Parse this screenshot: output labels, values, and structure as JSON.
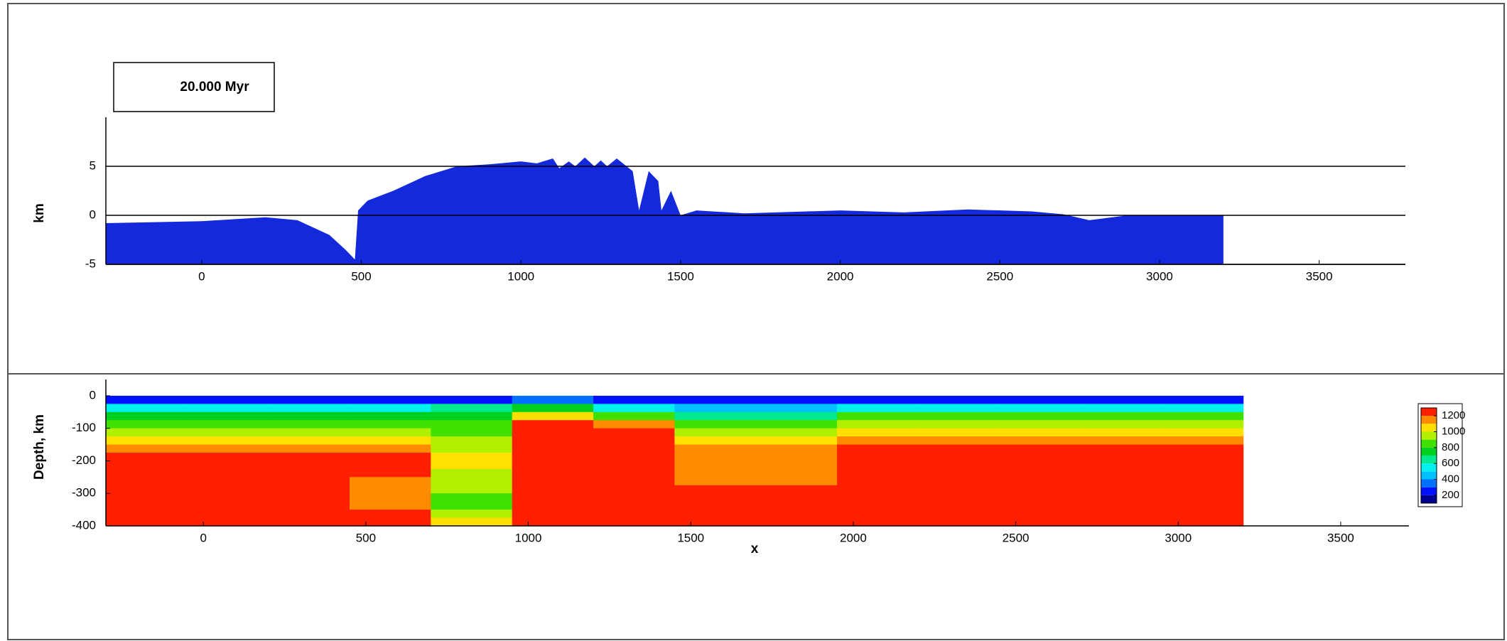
{
  "chart_data": [
    {
      "type": "area",
      "label": "20.000 Myr",
      "y_label": "km",
      "color": "#1428dc",
      "x": [
        -300,
        0,
        200,
        300,
        400,
        450,
        480,
        490,
        520,
        600,
        700,
        800,
        900,
        1000,
        1050,
        1100,
        1120,
        1150,
        1170,
        1200,
        1230,
        1250,
        1270,
        1300,
        1350,
        1370,
        1400,
        1430,
        1440,
        1470,
        1500,
        1550,
        1700,
        2000,
        2200,
        2400,
        2600,
        2700,
        2780,
        2900,
        3200
      ],
      "values": [
        -0.8,
        -0.6,
        -0.2,
        -0.5,
        -2,
        -3.5,
        -4.5,
        0.5,
        1.5,
        2.5,
        4,
        5,
        5.2,
        5.5,
        5.3,
        5.8,
        4.8,
        5.5,
        5,
        5.9,
        5,
        5.6,
        5,
        5.8,
        4.5,
        0.5,
        4.5,
        3.5,
        0.5,
        2.5,
        0,
        0.5,
        0.2,
        0.5,
        0.3,
        0.6,
        0.4,
        0.1,
        -0.5,
        0,
        0
      ],
      "xlim": [
        -300,
        3770
      ],
      "ylim": [
        -5,
        10
      ],
      "xticks": [
        0,
        500,
        1000,
        1500,
        2000,
        2500,
        3000,
        3500
      ],
      "yticks": [
        -5,
        0,
        5
      ],
      "grid": true
    },
    {
      "type": "heatmap",
      "y_label": "Depth, km",
      "x_label": "x",
      "x_edges": [
        -300,
        -50,
        200,
        450,
        700,
        950,
        1200,
        1450,
        1700,
        1950,
        2200,
        2450,
        2700,
        2950,
        3200
      ],
      "y_edges": [
        0,
        -25,
        -50,
        -75,
        -100,
        -125,
        -150,
        -175,
        -200,
        -225,
        -250,
        -275,
        -300,
        -325,
        -350,
        -375,
        -400
      ],
      "z": [
        [
          250,
          250,
          250,
          250,
          250,
          350,
          250,
          250,
          250,
          250,
          250,
          250,
          250,
          250
        ],
        [
          550,
          550,
          550,
          550,
          600,
          750,
          550,
          450,
          450,
          550,
          550,
          550,
          550,
          550
        ],
        [
          750,
          750,
          750,
          750,
          750,
          1050,
          850,
          650,
          650,
          800,
          800,
          800,
          800,
          800
        ],
        [
          850,
          850,
          850,
          850,
          800,
          1250,
          1150,
          800,
          800,
          900,
          900,
          900,
          900,
          900
        ],
        [
          950,
          950,
          950,
          900,
          850,
          1250,
          1250,
          900,
          900,
          1000,
          1000,
          1000,
          1000,
          1000
        ],
        [
          1050,
          1050,
          1050,
          1000,
          900,
          1250,
          1250,
          1050,
          1000,
          1100,
          1100,
          1100,
          1100,
          1100
        ],
        [
          1150,
          1150,
          1150,
          1100,
          950,
          1250,
          1250,
          1150,
          1100,
          1200,
          1200,
          1200,
          1200,
          1200
        ],
        [
          1250,
          1250,
          1250,
          1200,
          1000,
          1250,
          1250,
          1150,
          1150,
          1250,
          1250,
          1250,
          1250,
          1250
        ],
        [
          1250,
          1250,
          1250,
          1250,
          1000,
          1250,
          1250,
          1150,
          1150,
          1250,
          1250,
          1250,
          1250,
          1250
        ],
        [
          1250,
          1250,
          1250,
          1250,
          950,
          1250,
          1250,
          1150,
          1150,
          1250,
          1250,
          1250,
          1250,
          1250
        ],
        [
          1250,
          1250,
          1250,
          1150,
          950,
          1250,
          1250,
          1150,
          1150,
          1250,
          1250,
          1250,
          1250,
          1250
        ],
        [
          1250,
          1250,
          1250,
          1150,
          900,
          1250,
          1250,
          1200,
          1200,
          1250,
          1250,
          1250,
          1250,
          1250
        ],
        [
          1250,
          1250,
          1250,
          1100,
          850,
          1250,
          1250,
          1250,
          1250,
          1250,
          1250,
          1250,
          1250,
          1250
        ],
        [
          1250,
          1250,
          1250,
          1150,
          850,
          1250,
          1250,
          1250,
          1250,
          1250,
          1250,
          1250,
          1250,
          1250
        ],
        [
          1250,
          1250,
          1250,
          1200,
          900,
          1250,
          1250,
          1250,
          1250,
          1250,
          1250,
          1250,
          1250,
          1250
        ],
        [
          1250,
          1250,
          1250,
          1250,
          1000,
          1250,
          1250,
          1250,
          1250,
          1250,
          1250,
          1250,
          1250,
          1250
        ]
      ],
      "xlim": [
        -300,
        3710
      ],
      "ylim": [
        -400,
        50
      ],
      "xticks": [
        0,
        500,
        1000,
        1500,
        2000,
        2500,
        3000,
        3500
      ],
      "yticks": [
        0,
        -100,
        -200,
        -300,
        -400
      ],
      "colorbar": {
        "levels": [
          100,
          200,
          300,
          400,
          500,
          600,
          700,
          800,
          900,
          1000,
          1100,
          1200,
          1300
        ],
        "colors": [
          "#000090",
          "#0010ff",
          "#0070ff",
          "#00c0ff",
          "#00f0f0",
          "#00e890",
          "#00d020",
          "#40e000",
          "#b0f000",
          "#ffe000",
          "#ff8c00",
          "#ff2000"
        ],
        "ticks": [
          200,
          400,
          600,
          800,
          1000,
          1200
        ]
      }
    }
  ]
}
